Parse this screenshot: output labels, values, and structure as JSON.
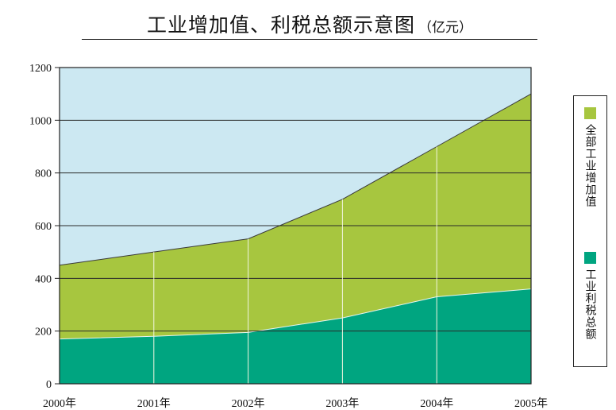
{
  "title": "工业增加值、利税总额示意图",
  "unit": "（亿元）",
  "colors": {
    "background_area": "#cce8f2",
    "total": "#a7c63f",
    "tax": "#00a580",
    "grid": "#2a2a2a",
    "divider": "#f2f6e0"
  },
  "chart_data": {
    "type": "area",
    "title": "工业增加值、利税总额示意图",
    "unit": "亿元",
    "categories": [
      "2000年",
      "2001年",
      "2002年",
      "2003年",
      "2004年",
      "2005年"
    ],
    "series": [
      {
        "name": "全部工业增加值",
        "values": [
          450,
          500,
          550,
          700,
          900,
          1100
        ]
      },
      {
        "name": "工业利税总额",
        "values": [
          170,
          180,
          195,
          250,
          330,
          360
        ]
      }
    ],
    "ylim": [
      0,
      1200
    ],
    "yticks": [
      0,
      200,
      400,
      600,
      800,
      1000,
      1200
    ],
    "grid": true,
    "legend_position": "right"
  },
  "legend": [
    {
      "label": "全部工业增加值",
      "color": "#a7c63f"
    },
    {
      "label": "工业利税总额",
      "color": "#00a580"
    }
  ]
}
